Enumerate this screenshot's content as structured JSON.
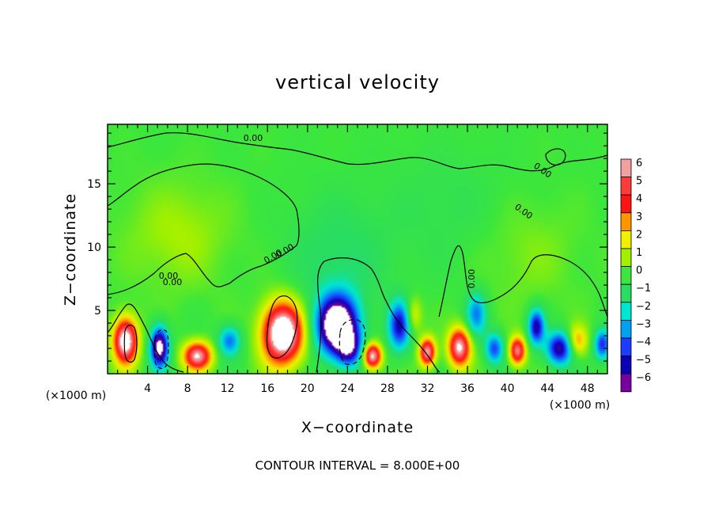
{
  "chart_data": {
    "type": "heatmap",
    "title": "vertical velocity",
    "xlabel": "X−coordinate",
    "ylabel": "Z−coordinate",
    "x_unit_left": "(×1000 m)",
    "x_unit_right": "(×1000 m)",
    "xlim": [
      0,
      50
    ],
    "ylim": [
      0,
      19.7
    ],
    "x_ticks": [
      4,
      8,
      12,
      16,
      20,
      24,
      28,
      32,
      36,
      40,
      44,
      48
    ],
    "x_tick_labels": [
      "4",
      "8",
      "12",
      "16",
      "20",
      "24",
      "28",
      "32",
      "36",
      "40",
      "44",
      "48"
    ],
    "y_ticks": [
      5,
      10,
      15
    ],
    "y_tick_labels": [
      "5",
      "10",
      "15"
    ],
    "colorbar": {
      "levels": [
        6,
        5,
        4,
        3,
        2,
        1,
        0,
        -1,
        -2,
        -3,
        -4,
        -5,
        -6
      ],
      "labels": [
        "6",
        "5",
        "4",
        "3",
        "2",
        "1",
        "0",
        "−1",
        "−2",
        "−3",
        "−4",
        "−5",
        "−6"
      ],
      "colors": [
        "#f0a0a0",
        "#ff3b3b",
        "#ff1414",
        "#ff9600",
        "#f0f000",
        "#a0f000",
        "#3ce63c",
        "#28dc64",
        "#00e6d2",
        "#00a0f0",
        "#1e3cff",
        "#0a00b4",
        "#7800a0"
      ]
    },
    "contour_labels": [
      "0.00",
      "0.00",
      "0.00",
      "0.00",
      "0.00",
      "0.00",
      "0.00",
      "0.00"
    ],
    "footer": "CONTOUR INTERVAL = 8.000E+00",
    "features": [
      {
        "x": 1.8,
        "z": 2.6,
        "w": 5.5,
        "sx": 1.2,
        "sz": 1.8
      },
      {
        "x": 5.2,
        "z": 2.1,
        "w": -5.2,
        "sx": 0.9,
        "sz": 1.6
      },
      {
        "x": 9.0,
        "z": 1.4,
        "w": 4.6,
        "sx": 1.4,
        "sz": 1.1
      },
      {
        "x": 12.2,
        "z": 2.6,
        "w": -2.6,
        "sx": 1.1,
        "sz": 1.2
      },
      {
        "x": 17.5,
        "z": 3.2,
        "w": 6.3,
        "sx": 2.0,
        "sz": 2.4
      },
      {
        "x": 23.0,
        "z": 3.8,
        "w": -6.5,
        "sx": 2.0,
        "sz": 2.3
      },
      {
        "x": 24.2,
        "z": 2.0,
        "w": -3.0,
        "sx": 1.2,
        "sz": 1.4
      },
      {
        "x": 26.5,
        "z": 1.4,
        "w": 5.0,
        "sx": 0.9,
        "sz": 1.0
      },
      {
        "x": 29.2,
        "z": 3.8,
        "w": -3.6,
        "sx": 1.1,
        "sz": 1.9
      },
      {
        "x": 30.6,
        "z": 4.6,
        "w": 1.6,
        "sx": 0.8,
        "sz": 1.4
      },
      {
        "x": 32.0,
        "z": 1.7,
        "w": 4.6,
        "sx": 0.8,
        "sz": 1.1
      },
      {
        "x": 35.2,
        "z": 2.1,
        "w": 4.8,
        "sx": 1.1,
        "sz": 1.5
      },
      {
        "x": 36.9,
        "z": 4.7,
        "w": -2.4,
        "sx": 1.0,
        "sz": 1.7
      },
      {
        "x": 38.7,
        "z": 2.0,
        "w": -2.9,
        "sx": 0.9,
        "sz": 1.2
      },
      {
        "x": 41.0,
        "z": 1.8,
        "w": 4.3,
        "sx": 0.8,
        "sz": 1.1
      },
      {
        "x": 42.9,
        "z": 3.7,
        "w": -3.8,
        "sx": 0.8,
        "sz": 1.4
      },
      {
        "x": 45.2,
        "z": 2.0,
        "w": -4.1,
        "sx": 1.3,
        "sz": 1.3
      },
      {
        "x": 47.0,
        "z": 2.6,
        "w": 2.2,
        "sx": 1.0,
        "sz": 1.2
      },
      {
        "x": 49.5,
        "z": 2.3,
        "w": -3.2,
        "sx": 0.8,
        "sz": 1.2
      },
      {
        "x": 23.0,
        "z": 9.0,
        "w": -0.8,
        "sx": 5.0,
        "sz": 5.0
      },
      {
        "x": 7.0,
        "z": 11.0,
        "w": 0.8,
        "sx": 5.0,
        "sz": 4.0
      },
      {
        "x": 42.0,
        "z": 9.5,
        "w": 0.5,
        "sx": 5.0,
        "sz": 4.0
      },
      {
        "x": 34.0,
        "z": 13.0,
        "w": -0.4,
        "sx": 6.0,
        "sz": 5.0
      }
    ]
  }
}
